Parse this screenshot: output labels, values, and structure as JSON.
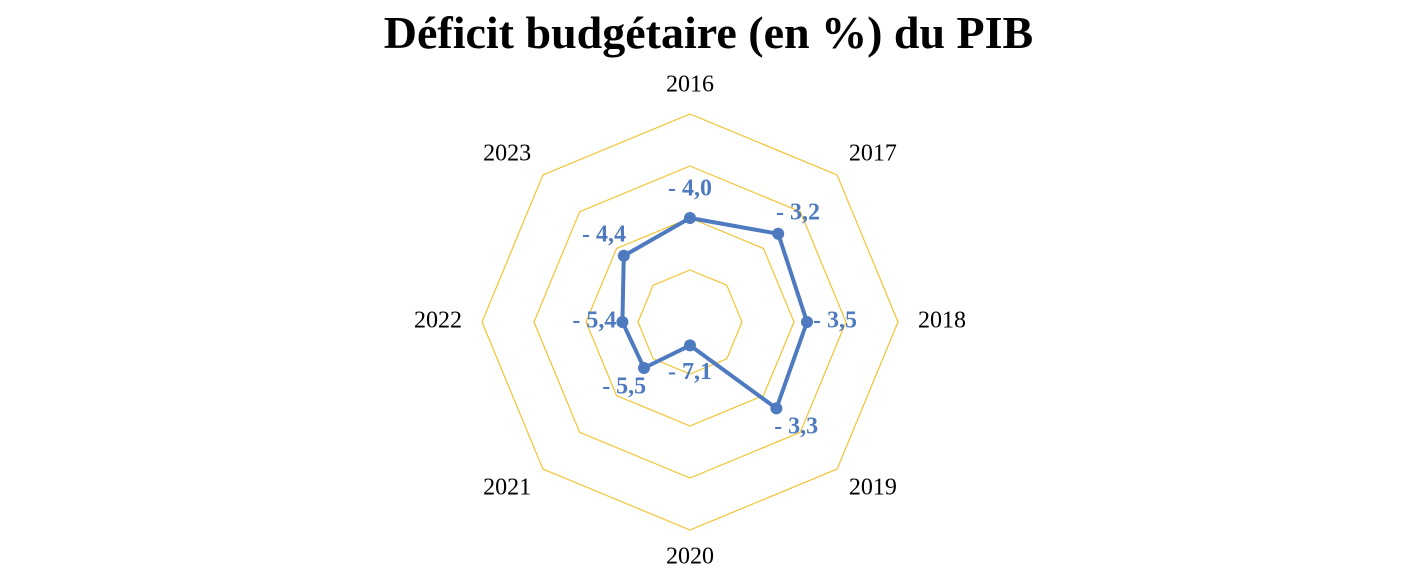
{
  "chart_data": {
    "type": "radar",
    "title": "Déficit budgétaire (en %) du PIB",
    "categories": [
      "2016",
      "2017",
      "2018",
      "2019",
      "2020",
      "2021",
      "2022",
      "2023"
    ],
    "values": [
      -4.0,
      -3.2,
      -3.5,
      -3.3,
      -7.1,
      -5.5,
      -5.4,
      -4.4
    ],
    "value_labels": [
      "- 4,0",
      "- 3,2",
      "- 3,5",
      "- 3,3",
      "- 7,1",
      "- 5,5",
      "- 5,4",
      "- 4,4"
    ],
    "rlim": [
      -8,
      0
    ],
    "grid_levels": [
      -8,
      -6,
      -4,
      -2,
      0
    ],
    "grid": true,
    "colors": {
      "series": "#4e7abf",
      "grid": "#f2c332"
    }
  }
}
